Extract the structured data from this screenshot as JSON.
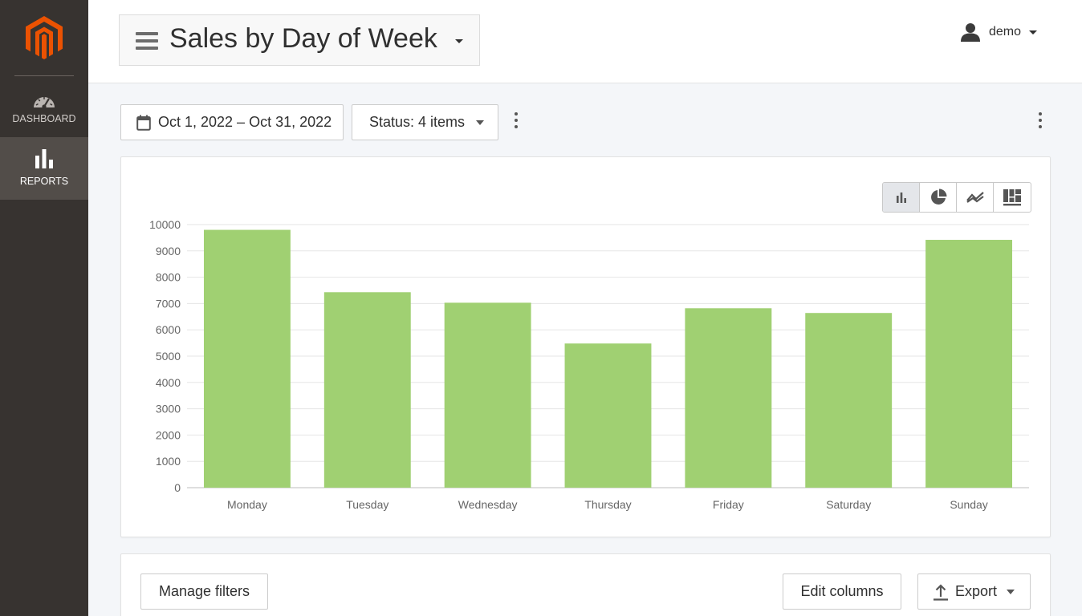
{
  "sidebar": {
    "logo": "magento-logo",
    "items": [
      {
        "label": "DASHBOARD",
        "icon": "speedometer-icon",
        "active": false
      },
      {
        "label": "REPORTS",
        "icon": "bar-chart-icon",
        "active": true
      }
    ]
  },
  "header": {
    "title": "Sales by Day of Week",
    "user": "demo"
  },
  "toolbar": {
    "date_range": "Oct 1, 2022 – Oct 31, 2022",
    "status": "Status: 4 items"
  },
  "chart_types": [
    "bar-chart-icon",
    "pie-chart-icon",
    "line-chart-icon",
    "treemap-icon"
  ],
  "chart_data": {
    "type": "bar",
    "categories": [
      "Monday",
      "Tuesday",
      "Wednesday",
      "Thursday",
      "Friday",
      "Saturday",
      "Sunday"
    ],
    "values": [
      9800,
      7430,
      7030,
      5480,
      6820,
      6640,
      9420
    ],
    "ylim": [
      0,
      10000
    ],
    "yticks": [
      0,
      1000,
      2000,
      3000,
      4000,
      5000,
      6000,
      7000,
      8000,
      9000,
      10000
    ],
    "grid": true,
    "bar_color": "#a0d072"
  },
  "actions": {
    "manage_filters": "Manage filters",
    "edit_columns": "Edit columns",
    "export": "Export"
  },
  "colors": {
    "sidebar_bg": "#373330",
    "sidebar_active": "#524d49",
    "logo_orange": "#eb5202",
    "bar": "#a0d072"
  }
}
